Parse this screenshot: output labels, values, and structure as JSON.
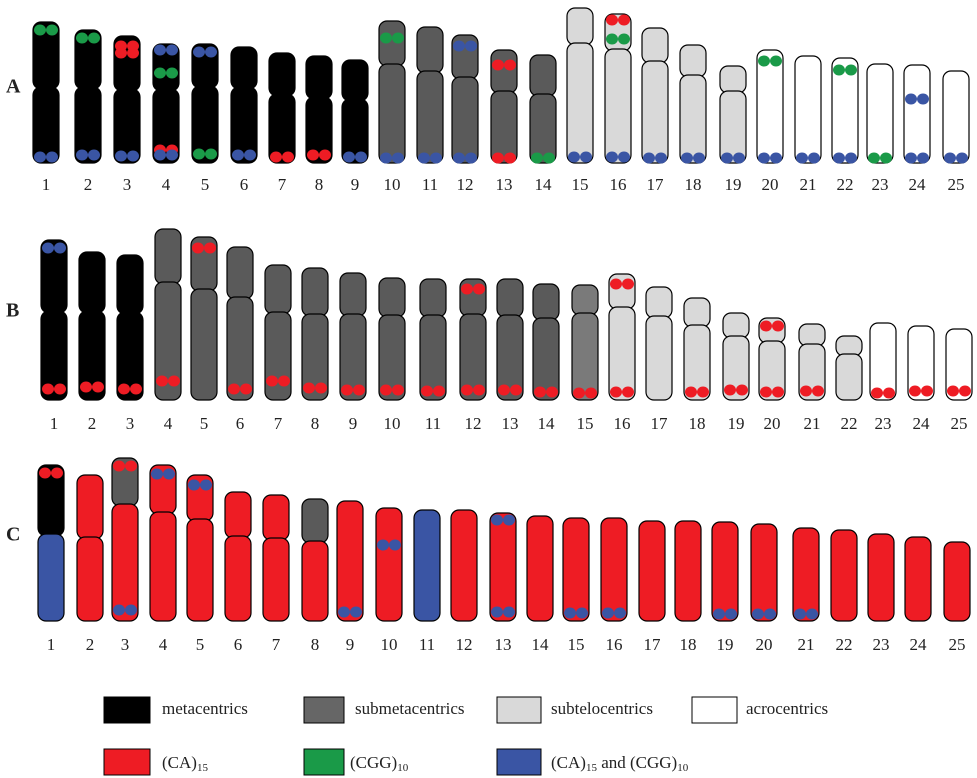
{
  "panels": [
    {
      "label": "A",
      "numbers": [
        1,
        2,
        3,
        4,
        5,
        6,
        7,
        8,
        9,
        10,
        11,
        12,
        13,
        14,
        15,
        16,
        17,
        18,
        19,
        20,
        21,
        22,
        23,
        24,
        25
      ]
    },
    {
      "label": "B",
      "numbers": [
        1,
        2,
        3,
        4,
        5,
        6,
        7,
        8,
        9,
        10,
        11,
        12,
        13,
        14,
        15,
        16,
        17,
        18,
        19,
        20,
        21,
        22,
        23,
        24,
        25
      ]
    },
    {
      "label": "C",
      "numbers": [
        1,
        2,
        3,
        4,
        5,
        6,
        7,
        8,
        9,
        10,
        11,
        12,
        13,
        14,
        15,
        16,
        17,
        18,
        19,
        20,
        21,
        22,
        23,
        24,
        25
      ]
    }
  ],
  "legend": {
    "types": [
      "metacentrics",
      "submetacentrics",
      "subtelocentrics",
      "acrocentrics"
    ],
    "probes": [
      {
        "text": "(CA)",
        "sub": "15"
      },
      {
        "text": "(CGG)",
        "sub": "10"
      },
      {
        "text": "(CA)",
        "sub": "15",
        "text2": " and (CGG)",
        "sub2": "10"
      }
    ]
  }
}
